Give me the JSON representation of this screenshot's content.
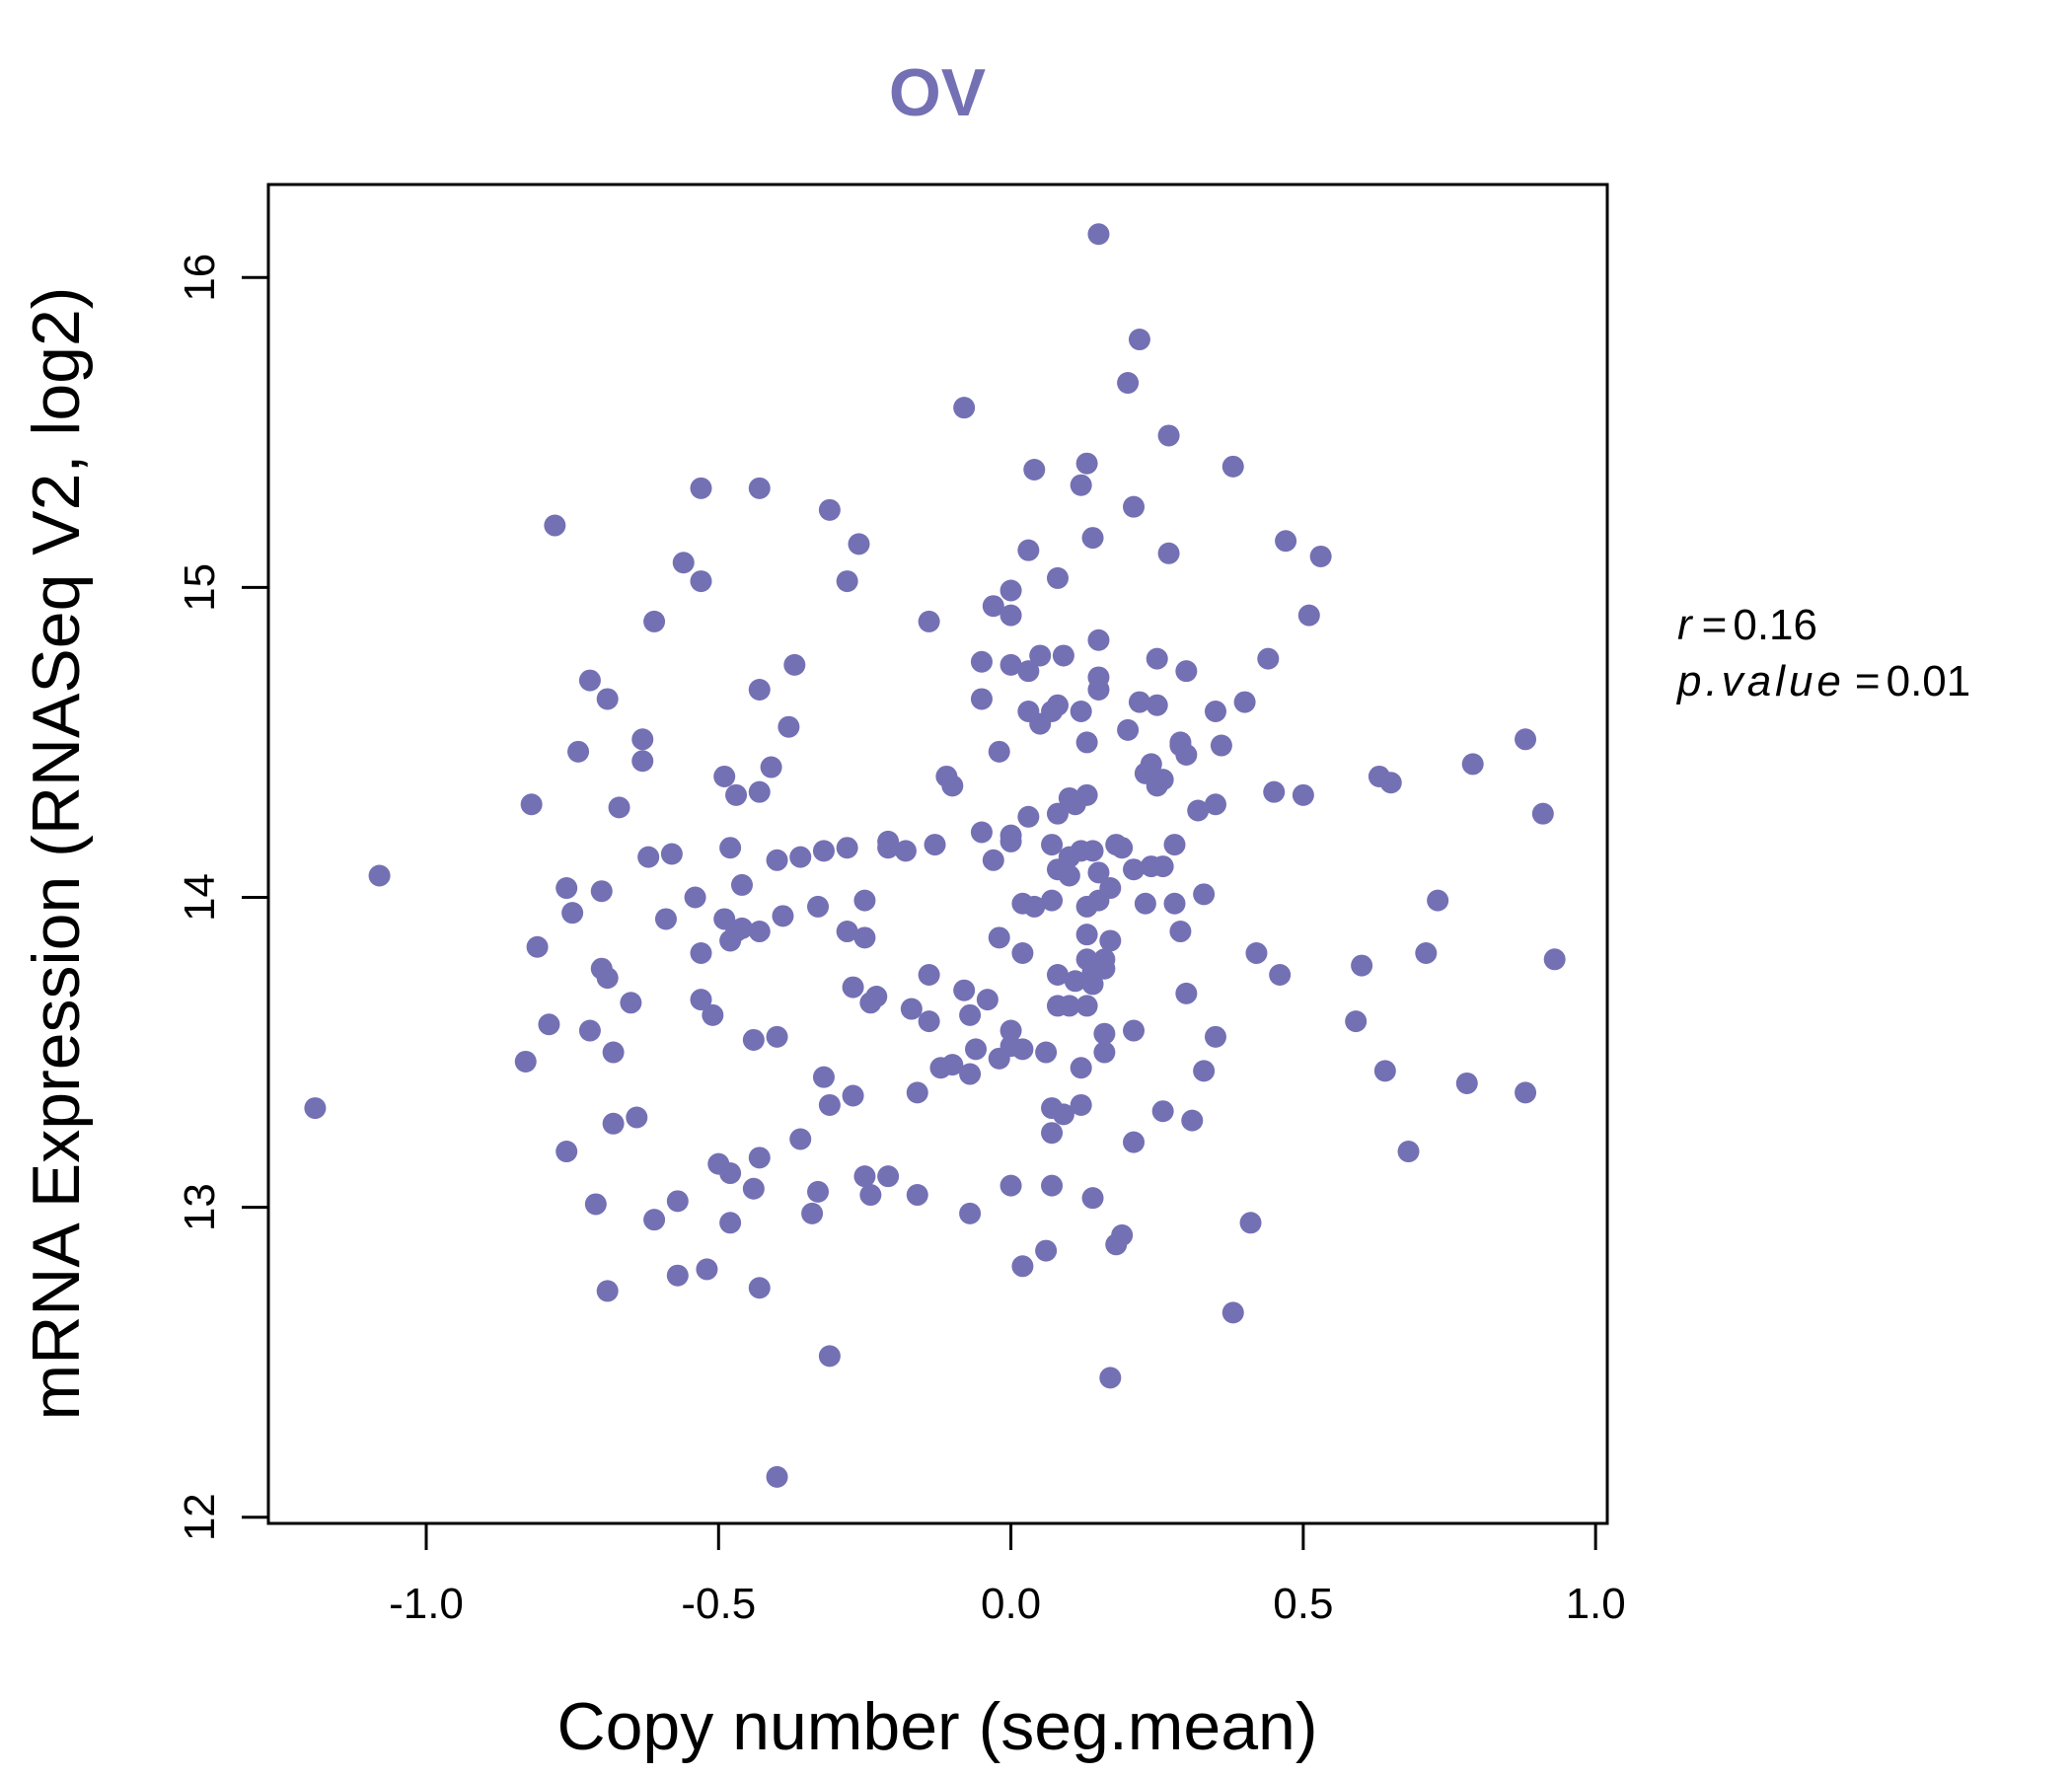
{
  "colors": {
    "point": "#7470b4",
    "title": "#7470b4",
    "axis": "#000000"
  },
  "chart_data": {
    "type": "scatter",
    "title": "OV",
    "xlabel": "Copy number (seg.mean)",
    "ylabel": "mRNA Expression (RNASeq V2, log2)",
    "xlim": [
      -1.27,
      1.02
    ],
    "ylim": [
      11.98,
      16.3
    ],
    "xticks": [
      -1.0,
      -0.5,
      0.0,
      0.5,
      1.0
    ],
    "xtick_labels": [
      "-1.0",
      "-0.5",
      "0.0",
      "0.5",
      "1.0"
    ],
    "yticks": [
      12,
      13,
      14,
      15,
      16
    ],
    "ytick_labels": [
      "12",
      "13",
      "14",
      "15",
      "16"
    ],
    "stats": {
      "r_label": "r",
      "r_value": "0.16",
      "p_label": "p.value",
      "p_value": "0.01"
    },
    "points": [
      [
        -1.19,
        13.32
      ],
      [
        -1.08,
        14.07
      ],
      [
        -0.83,
        13.47
      ],
      [
        -0.82,
        14.3
      ],
      [
        -0.81,
        13.84
      ],
      [
        -0.79,
        13.59
      ],
      [
        -0.78,
        15.2
      ],
      [
        -0.76,
        13.18
      ],
      [
        -0.76,
        14.03
      ],
      [
        -0.75,
        13.95
      ],
      [
        -0.74,
        14.47
      ],
      [
        -0.72,
        14.7
      ],
      [
        -0.72,
        13.57
      ],
      [
        -0.71,
        13.01
      ],
      [
        -0.7,
        13.77
      ],
      [
        -0.7,
        14.02
      ],
      [
        -0.69,
        14.64
      ],
      [
        -0.69,
        13.74
      ],
      [
        -0.69,
        12.73
      ],
      [
        -0.68,
        13.5
      ],
      [
        -0.68,
        13.27
      ],
      [
        -0.67,
        14.29
      ],
      [
        -0.65,
        13.66
      ],
      [
        -0.64,
        13.29
      ],
      [
        -0.63,
        14.44
      ],
      [
        -0.63,
        14.51
      ],
      [
        -0.62,
        14.13
      ],
      [
        -0.61,
        14.89
      ],
      [
        -0.61,
        12.96
      ],
      [
        -0.59,
        13.93
      ],
      [
        -0.58,
        14.14
      ],
      [
        -0.57,
        13.02
      ],
      [
        -0.57,
        12.78
      ],
      [
        -0.56,
        15.08
      ],
      [
        -0.54,
        14.0
      ],
      [
        -0.53,
        15.32
      ],
      [
        -0.53,
        15.02
      ],
      [
        -0.53,
        13.82
      ],
      [
        -0.53,
        13.67
      ],
      [
        -0.52,
        12.8
      ],
      [
        -0.51,
        13.62
      ],
      [
        -0.5,
        13.14
      ],
      [
        -0.49,
        14.39
      ],
      [
        -0.49,
        13.93
      ],
      [
        -0.48,
        13.11
      ],
      [
        -0.48,
        14.16
      ],
      [
        -0.48,
        13.86
      ],
      [
        -0.48,
        12.95
      ],
      [
        -0.47,
        13.89
      ],
      [
        -0.47,
        14.33
      ],
      [
        -0.46,
        14.04
      ],
      [
        -0.46,
        13.9
      ],
      [
        -0.44,
        13.54
      ],
      [
        -0.44,
        13.06
      ],
      [
        -0.43,
        15.32
      ],
      [
        -0.43,
        14.67
      ],
      [
        -0.43,
        14.34
      ],
      [
        -0.43,
        13.16
      ],
      [
        -0.43,
        13.89
      ],
      [
        -0.43,
        12.74
      ],
      [
        -0.41,
        14.42
      ],
      [
        -0.4,
        14.12
      ],
      [
        -0.4,
        13.55
      ],
      [
        -0.4,
        12.13
      ],
      [
        -0.39,
        13.94
      ],
      [
        -0.38,
        14.55
      ],
      [
        -0.37,
        14.75
      ],
      [
        -0.36,
        14.13
      ],
      [
        -0.36,
        13.22
      ],
      [
        -0.34,
        12.98
      ],
      [
        -0.33,
        13.97
      ],
      [
        -0.33,
        13.05
      ],
      [
        -0.32,
        13.42
      ],
      [
        -0.32,
        14.15
      ],
      [
        -0.31,
        15.25
      ],
      [
        -0.31,
        13.33
      ],
      [
        -0.31,
        12.52
      ],
      [
        -0.28,
        14.16
      ],
      [
        -0.28,
        13.89
      ],
      [
        -0.28,
        15.02
      ],
      [
        -0.27,
        13.71
      ],
      [
        -0.27,
        13.36
      ],
      [
        -0.26,
        15.14
      ],
      [
        -0.25,
        13.87
      ],
      [
        -0.25,
        13.1
      ],
      [
        -0.25,
        13.99
      ],
      [
        -0.24,
        13.66
      ],
      [
        -0.24,
        13.04
      ],
      [
        -0.23,
        13.68
      ],
      [
        -0.21,
        14.18
      ],
      [
        -0.21,
        14.16
      ],
      [
        -0.21,
        13.1
      ],
      [
        -0.18,
        14.15
      ],
      [
        -0.17,
        13.64
      ],
      [
        -0.16,
        13.37
      ],
      [
        -0.16,
        13.04
      ],
      [
        -0.14,
        14.89
      ],
      [
        -0.14,
        13.75
      ],
      [
        -0.14,
        13.6
      ],
      [
        -0.13,
        14.17
      ],
      [
        -0.12,
        13.45
      ],
      [
        -0.11,
        14.39
      ],
      [
        -0.1,
        14.36
      ],
      [
        -0.1,
        13.46
      ],
      [
        -0.08,
        15.58
      ],
      [
        -0.08,
        13.7
      ],
      [
        -0.07,
        13.62
      ],
      [
        -0.07,
        13.43
      ],
      [
        -0.07,
        12.98
      ],
      [
        -0.06,
        13.51
      ],
      [
        -0.05,
        14.64
      ],
      [
        -0.05,
        14.76
      ],
      [
        -0.05,
        14.21
      ],
      [
        -0.04,
        13.67
      ],
      [
        -0.03,
        14.94
      ],
      [
        -0.03,
        14.12
      ],
      [
        -0.02,
        14.47
      ],
      [
        -0.02,
        13.87
      ],
      [
        -0.02,
        13.48
      ],
      [
        0.0,
        14.99
      ],
      [
        0.0,
        14.91
      ],
      [
        0.0,
        14.75
      ],
      [
        0.0,
        14.18
      ],
      [
        0.0,
        14.2
      ],
      [
        0.0,
        13.52
      ],
      [
        0.0,
        13.57
      ],
      [
        0.0,
        13.07
      ],
      [
        0.02,
        13.82
      ],
      [
        0.02,
        13.98
      ],
      [
        0.02,
        13.51
      ],
      [
        0.02,
        12.81
      ],
      [
        0.03,
        15.12
      ],
      [
        0.03,
        14.73
      ],
      [
        0.03,
        14.6
      ],
      [
        0.03,
        14.26
      ],
      [
        0.04,
        15.38
      ],
      [
        0.04,
        13.97
      ],
      [
        0.05,
        14.78
      ],
      [
        0.05,
        14.56
      ],
      [
        0.06,
        13.5
      ],
      [
        0.06,
        12.86
      ],
      [
        0.07,
        14.6
      ],
      [
        0.07,
        14.17
      ],
      [
        0.07,
        13.99
      ],
      [
        0.07,
        13.32
      ],
      [
        0.07,
        13.07
      ],
      [
        0.07,
        13.24
      ],
      [
        0.08,
        15.03
      ],
      [
        0.08,
        14.62
      ],
      [
        0.08,
        14.27
      ],
      [
        0.08,
        14.09
      ],
      [
        0.08,
        13.65
      ],
      [
        0.08,
        13.75
      ],
      [
        0.09,
        14.78
      ],
      [
        0.09,
        13.3
      ],
      [
        0.1,
        14.13
      ],
      [
        0.1,
        14.07
      ],
      [
        0.1,
        14.32
      ],
      [
        0.1,
        13.65
      ],
      [
        0.11,
        14.3
      ],
      [
        0.11,
        13.73
      ],
      [
        0.12,
        15.33
      ],
      [
        0.12,
        14.6
      ],
      [
        0.12,
        14.15
      ],
      [
        0.12,
        13.45
      ],
      [
        0.12,
        13.33
      ],
      [
        0.13,
        14.5
      ],
      [
        0.13,
        14.33
      ],
      [
        0.13,
        13.97
      ],
      [
        0.13,
        13.88
      ],
      [
        0.13,
        13.8
      ],
      [
        0.13,
        13.65
      ],
      [
        0.13,
        15.4
      ],
      [
        0.14,
        14.15
      ],
      [
        0.14,
        13.76
      ],
      [
        0.14,
        13.72
      ],
      [
        0.14,
        13.03
      ],
      [
        0.14,
        15.16
      ],
      [
        0.15,
        16.14
      ],
      [
        0.15,
        14.83
      ],
      [
        0.15,
        14.71
      ],
      [
        0.15,
        14.67
      ],
      [
        0.15,
        14.08
      ],
      [
        0.15,
        13.99
      ],
      [
        0.16,
        13.77
      ],
      [
        0.16,
        13.8
      ],
      [
        0.16,
        13.5
      ],
      [
        0.16,
        13.56
      ],
      [
        0.17,
        14.03
      ],
      [
        0.17,
        13.86
      ],
      [
        0.17,
        12.45
      ],
      [
        0.18,
        14.17
      ],
      [
        0.18,
        12.88
      ],
      [
        0.19,
        14.16
      ],
      [
        0.19,
        12.91
      ],
      [
        0.2,
        15.66
      ],
      [
        0.2,
        14.54
      ],
      [
        0.21,
        15.26
      ],
      [
        0.21,
        14.09
      ],
      [
        0.21,
        13.57
      ],
      [
        0.21,
        13.21
      ],
      [
        0.22,
        15.8
      ],
      [
        0.22,
        14.63
      ],
      [
        0.23,
        14.4
      ],
      [
        0.23,
        13.98
      ],
      [
        0.24,
        14.43
      ],
      [
        0.24,
        14.1
      ],
      [
        0.25,
        14.62
      ],
      [
        0.25,
        14.77
      ],
      [
        0.25,
        14.36
      ],
      [
        0.26,
        14.38
      ],
      [
        0.26,
        14.1
      ],
      [
        0.26,
        13.31
      ],
      [
        0.27,
        15.49
      ],
      [
        0.27,
        15.11
      ],
      [
        0.28,
        14.17
      ],
      [
        0.28,
        13.98
      ],
      [
        0.29,
        14.49
      ],
      [
        0.29,
        14.5
      ],
      [
        0.29,
        13.89
      ],
      [
        0.3,
        14.46
      ],
      [
        0.3,
        14.73
      ],
      [
        0.3,
        13.69
      ],
      [
        0.31,
        13.28
      ],
      [
        0.32,
        14.28
      ],
      [
        0.33,
        14.01
      ],
      [
        0.33,
        13.44
      ],
      [
        0.35,
        14.6
      ],
      [
        0.35,
        14.3
      ],
      [
        0.35,
        13.55
      ],
      [
        0.36,
        14.49
      ],
      [
        0.38,
        15.39
      ],
      [
        0.38,
        12.66
      ],
      [
        0.4,
        14.63
      ],
      [
        0.41,
        12.95
      ],
      [
        0.42,
        13.82
      ],
      [
        0.44,
        14.77
      ],
      [
        0.45,
        14.34
      ],
      [
        0.46,
        13.75
      ],
      [
        0.47,
        15.15
      ],
      [
        0.5,
        14.33
      ],
      [
        0.51,
        14.91
      ],
      [
        0.53,
        15.1
      ],
      [
        0.59,
        13.6
      ],
      [
        0.6,
        13.78
      ],
      [
        0.63,
        14.39
      ],
      [
        0.64,
        13.44
      ],
      [
        0.65,
        14.37
      ],
      [
        0.68,
        13.18
      ],
      [
        0.71,
        13.82
      ],
      [
        0.73,
        13.99
      ],
      [
        0.78,
        13.4
      ],
      [
        0.79,
        14.43
      ],
      [
        0.88,
        14.51
      ],
      [
        0.88,
        13.37
      ],
      [
        0.91,
        14.27
      ],
      [
        0.93,
        13.8
      ]
    ]
  }
}
